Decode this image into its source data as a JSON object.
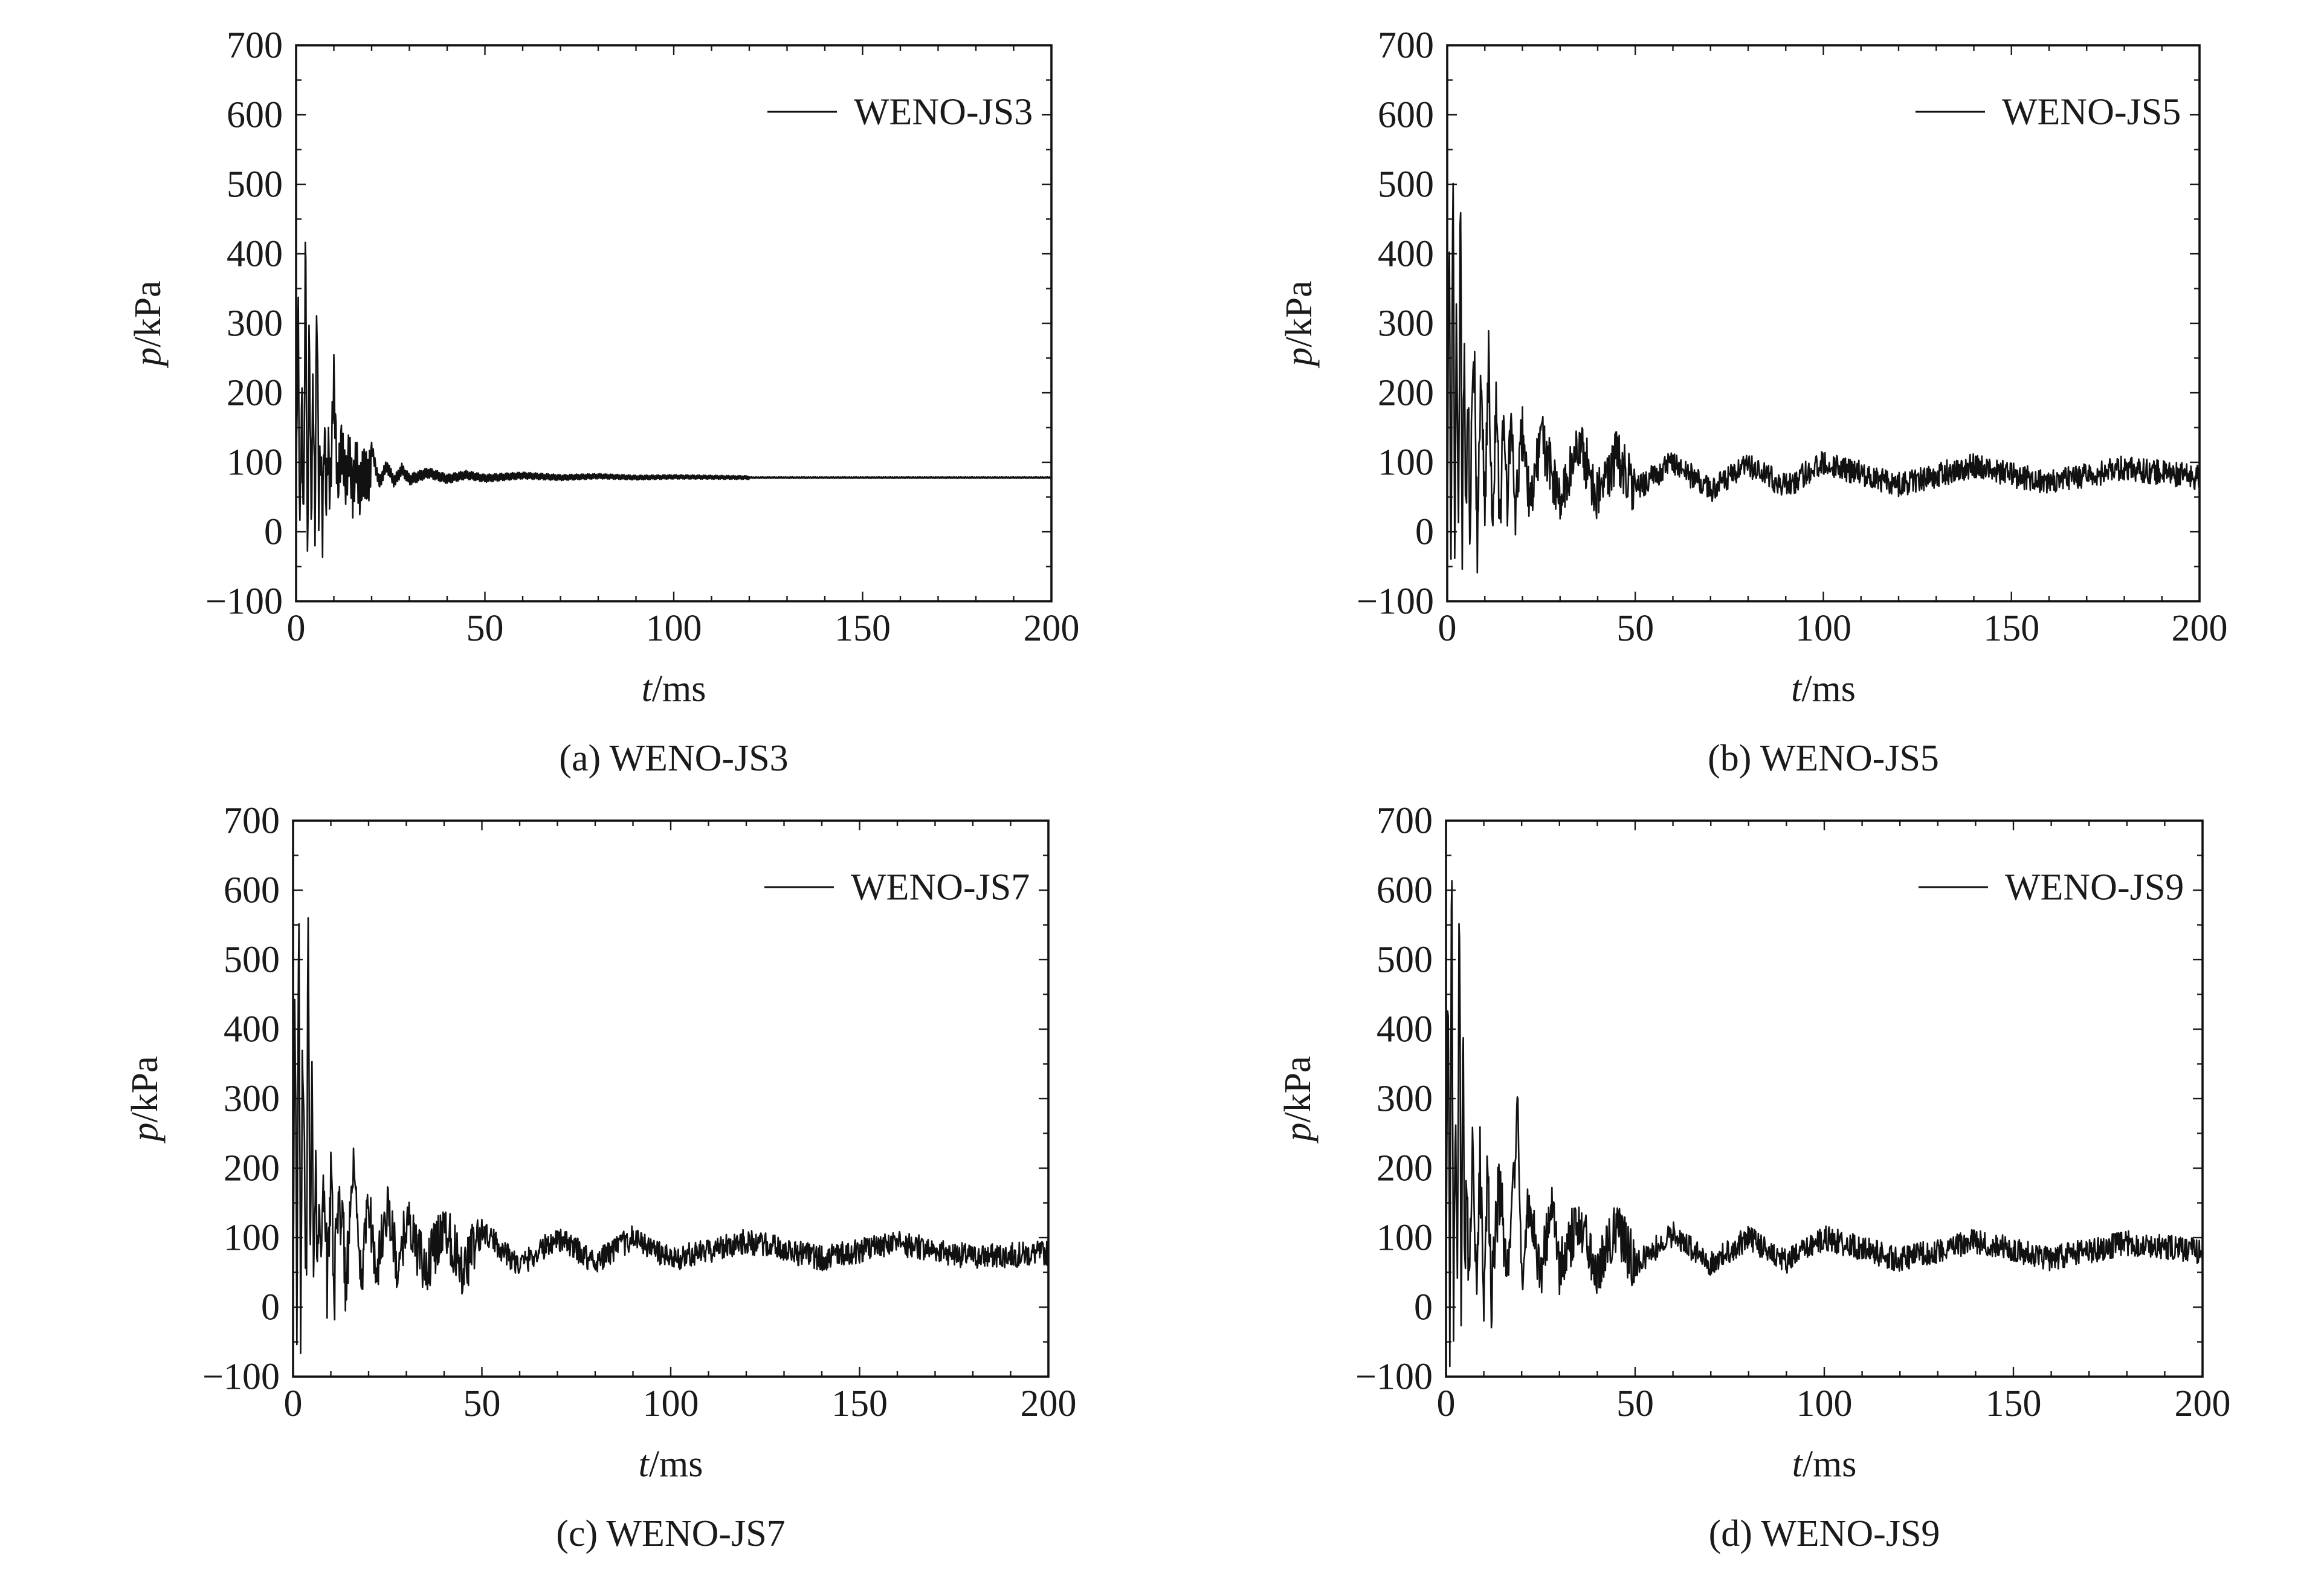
{
  "figure": {
    "panels": [
      {
        "caption": "(a) WENO-JS3",
        "legend": "WENO-JS3"
      },
      {
        "caption": "(b) WENO-JS5",
        "legend": "WENO-JS5"
      },
      {
        "caption": "(c) WENO-JS7",
        "legend": "WENO-JS7"
      },
      {
        "caption": "(d) WENO-JS9",
        "legend": "WENO-JS9"
      }
    ]
  },
  "chart_data": [
    {
      "type": "line",
      "caption": "(a) WENO-JS3",
      "xlabel_italic": "t",
      "xlabel_unit": "/ms",
      "ylabel_italic": "p",
      "ylabel_unit": "/kPa",
      "xlim": [
        0,
        200
      ],
      "ylim": [
        -100,
        700
      ],
      "xticks": [
        0,
        50,
        100,
        150,
        200
      ],
      "yticks": [
        -100,
        0,
        100,
        200,
        300,
        400,
        500,
        600,
        700
      ],
      "ytick_labels": [
        "−100",
        "0",
        "100",
        "200",
        "300",
        "400",
        "500",
        "600",
        "700"
      ],
      "legend_position": "top-right",
      "series": [
        {
          "name": "WENO-JS3",
          "approximate": true,
          "x": [
            0,
            0.5,
            1,
            1.5,
            2,
            2.5,
            3,
            3.5,
            4,
            4.5,
            5,
            5.5,
            6,
            6.5,
            7,
            7.5,
            8,
            8.5,
            9,
            10,
            11,
            12,
            13,
            14,
            15,
            16,
            17,
            18,
            19,
            20,
            22,
            24,
            26,
            28,
            30,
            35,
            40,
            45,
            50,
            60,
            70,
            80,
            90,
            100,
            120,
            140,
            160,
            180,
            200
          ],
          "y": [
            0,
            350,
            -10,
            200,
            0,
            450,
            -60,
            310,
            10,
            230,
            0,
            360,
            40,
            120,
            0,
            160,
            40,
            130,
            50,
            220,
            60,
            130,
            70,
            110,
            60,
            100,
            55,
            95,
            65,
            120,
            70,
            95,
            72,
            90,
            75,
            85,
            76,
            82,
            77,
            81,
            78,
            80,
            78,
            79,
            78,
            78,
            78,
            78,
            78
          ]
        }
      ]
    },
    {
      "type": "line",
      "caption": "(b) WENO-JS5",
      "xlabel_italic": "t",
      "xlabel_unit": "/ms",
      "ylabel_italic": "p",
      "ylabel_unit": "/kPa",
      "xlim": [
        0,
        200
      ],
      "ylim": [
        -100,
        700
      ],
      "xticks": [
        0,
        50,
        100,
        150,
        200
      ],
      "yticks": [
        -100,
        0,
        100,
        200,
        300,
        400,
        500,
        600,
        700
      ],
      "ytick_labels": [
        "−100",
        "0",
        "100",
        "200",
        "300",
        "400",
        "500",
        "600",
        "700"
      ],
      "legend_position": "top-right",
      "series": [
        {
          "name": "WENO-JS5",
          "approximate": true,
          "x": [
            0,
            0.5,
            1,
            1.5,
            2,
            2.5,
            3,
            3.5,
            4,
            4.5,
            5,
            5.5,
            6,
            7,
            8,
            9,
            10,
            11,
            12,
            13,
            14,
            15,
            16,
            17,
            18,
            20,
            22,
            25,
            30,
            35,
            40,
            45,
            50,
            60,
            70,
            80,
            90,
            100,
            120,
            140,
            160,
            180,
            200
          ],
          "y": [
            0,
            440,
            -60,
            560,
            -30,
            330,
            20,
            480,
            0,
            300,
            10,
            250,
            -30,
            280,
            0,
            230,
            30,
            240,
            20,
            200,
            30,
            150,
            40,
            170,
            20,
            150,
            30,
            140,
            40,
            130,
            50,
            110,
            60,
            100,
            60,
            95,
            65,
            100,
            68,
            95,
            70,
            92,
            78
          ]
        }
      ]
    },
    {
      "type": "line",
      "caption": "(c) WENO-JS7",
      "xlabel_italic": "t",
      "xlabel_unit": "/ms",
      "ylabel_italic": "p",
      "ylabel_unit": "/kPa",
      "xlim": [
        0,
        200
      ],
      "ylim": [
        -100,
        700
      ],
      "xticks": [
        0,
        50,
        100,
        150,
        200
      ],
      "yticks": [
        -100,
        0,
        100,
        200,
        300,
        400,
        500,
        600,
        700
      ],
      "ytick_labels": [
        "−100",
        "0",
        "100",
        "200",
        "300",
        "400",
        "500",
        "600",
        "700"
      ],
      "legend_position": "top-right",
      "series": [
        {
          "name": "WENO-JS7",
          "approximate": true,
          "x": [
            0,
            0.5,
            1,
            1.5,
            2,
            2.5,
            3,
            3.5,
            4,
            4.5,
            5,
            5.5,
            6,
            6.5,
            7,
            7.5,
            8,
            9,
            10,
            11,
            12,
            14,
            16,
            18,
            20,
            22,
            25,
            28,
            30,
            35,
            40,
            45,
            50,
            60,
            70,
            80,
            90,
            100,
            120,
            140,
            160,
            180,
            200
          ],
          "y": [
            0,
            470,
            -60,
            620,
            -20,
            400,
            240,
            20,
            540,
            10,
            390,
            0,
            230,
            30,
            190,
            20,
            200,
            40,
            200,
            30,
            180,
            40,
            190,
            35,
            160,
            45,
            150,
            40,
            130,
            50,
            120,
            55,
            110,
            60,
            100,
            65,
            100,
            68,
            95,
            70,
            92,
            72,
            78
          ]
        }
      ]
    },
    {
      "type": "line",
      "caption": "(d) WENO-JS9",
      "xlabel_italic": "t",
      "xlabel_unit": "/ms",
      "ylabel_italic": "p",
      "ylabel_unit": "/kPa",
      "xlim": [
        0,
        200
      ],
      "ylim": [
        -100,
        700
      ],
      "xticks": [
        0,
        50,
        100,
        150,
        200
      ],
      "yticks": [
        -100,
        0,
        100,
        200,
        300,
        400,
        500,
        600,
        700
      ],
      "ytick_labels": [
        "−100",
        "0",
        "100",
        "200",
        "300",
        "400",
        "500",
        "600",
        "700"
      ],
      "legend_position": "top-right",
      "series": [
        {
          "name": "WENO-JS9",
          "approximate": true,
          "x": [
            0,
            0.5,
            1,
            1.5,
            2,
            2.5,
            3,
            3.5,
            4,
            4.5,
            5,
            5.5,
            6,
            7,
            8,
            9,
            10,
            11,
            12,
            14,
            16,
            18,
            19,
            20,
            22,
            25,
            28,
            30,
            35,
            40,
            45,
            50,
            60,
            70,
            80,
            90,
            100,
            120,
            140,
            160,
            180,
            200
          ],
          "y": [
            0,
            500,
            -60,
            665,
            -20,
            240,
            10,
            640,
            0,
            415,
            20,
            230,
            30,
            230,
            20,
            200,
            35,
            190,
            30,
            180,
            40,
            200,
            275,
            40,
            160,
            45,
            150,
            50,
            130,
            55,
            115,
            60,
            105,
            62,
            100,
            65,
            100,
            68,
            95,
            70,
            92,
            80
          ]
        }
      ]
    }
  ]
}
